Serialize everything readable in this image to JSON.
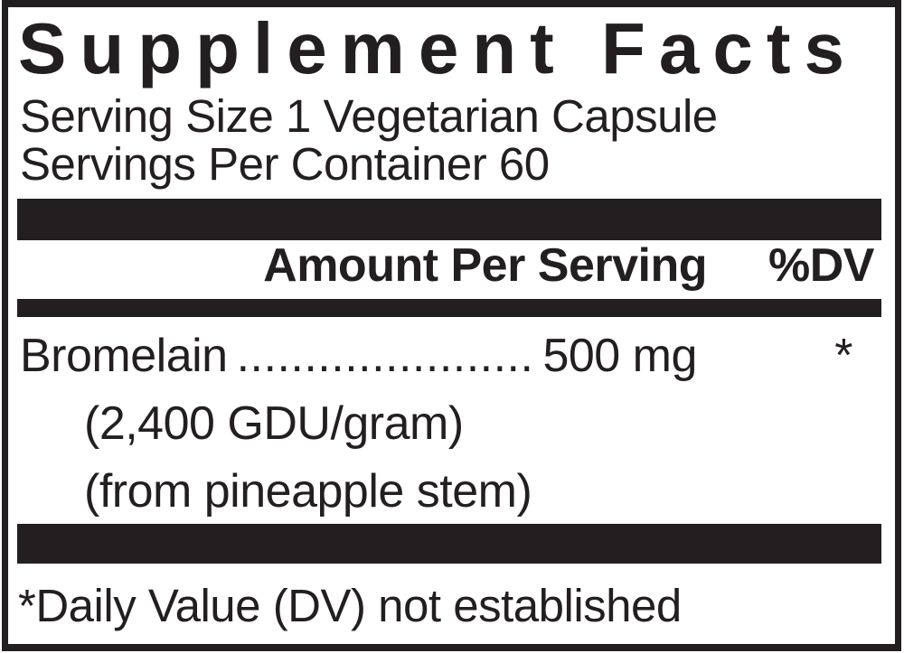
{
  "panel": {
    "title": "Supplement Facts",
    "serving_size": "Serving Size 1 Vegetarian Capsule",
    "servings_per_container": "Servings Per Container 60",
    "header": {
      "amount_label": "Amount Per Serving",
      "dv_label": "%DV"
    },
    "ingredients": [
      {
        "name": "Bromelain",
        "leader": "......................",
        "amount": "500 mg",
        "daily_value": "*",
        "details": [
          "(2,400 GDU/gram)",
          "(from pineapple stem)"
        ]
      }
    ],
    "footnote": "*Daily Value (DV) not established",
    "colors": {
      "ink": "#231f20",
      "background": "#ffffff"
    }
  }
}
